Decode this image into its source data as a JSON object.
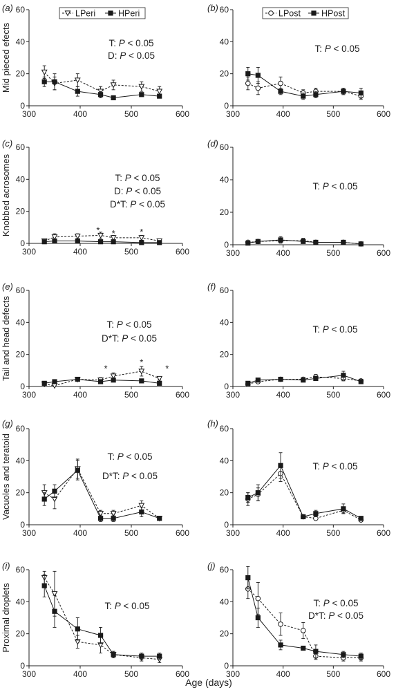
{
  "figure": {
    "xlabel_shared": "Age (days)"
  },
  "legends": {
    "left": {
      "a": "LPeri",
      "b": "HPeri"
    },
    "right": {
      "a": "LPost",
      "b": "HPost"
    }
  },
  "chart_data": [
    {
      "id": "a",
      "type": "line",
      "panel_label": "(a)",
      "ylabel": "Mid pieced efects",
      "xlim": [
        300,
        600
      ],
      "ylim": [
        0,
        60
      ],
      "xticks": [
        300,
        400,
        500,
        600
      ],
      "yticks": [
        0,
        20,
        40,
        60
      ],
      "annotations": [
        "T: P < 0.05",
        "D: P < 0.05"
      ],
      "stars": [],
      "series": [
        {
          "name": "LPeri",
          "style": "dashed",
          "marker": "triangle-open",
          "x": [
            330,
            350,
            395,
            440,
            465,
            520,
            555
          ],
          "y": [
            21,
            14,
            16,
            9,
            13,
            12,
            9
          ],
          "err": [
            4,
            4,
            4,
            3,
            3,
            3,
            3
          ]
        },
        {
          "name": "HPeri",
          "style": "solid",
          "marker": "square-filled",
          "x": [
            330,
            350,
            395,
            440,
            465,
            520,
            555
          ],
          "y": [
            15,
            15,
            9,
            7,
            5,
            7,
            6
          ],
          "err": [
            3,
            5,
            3,
            2,
            1,
            1,
            1
          ]
        }
      ]
    },
    {
      "id": "b",
      "type": "line",
      "panel_label": "(b)",
      "ylabel": "",
      "xlim": [
        300,
        600
      ],
      "ylim": [
        0,
        60
      ],
      "xticks": [
        300,
        400,
        500,
        600
      ],
      "yticks": [
        0,
        20,
        40,
        60
      ],
      "annotations": [
        "T: P < 0.05"
      ],
      "stars": [],
      "series": [
        {
          "name": "LPost",
          "style": "dashed",
          "marker": "circle-open",
          "x": [
            330,
            350,
            395,
            440,
            465,
            520,
            555
          ],
          "y": [
            14,
            11,
            14,
            8,
            9,
            9,
            6
          ],
          "err": [
            4,
            4,
            4,
            2,
            2,
            2,
            2
          ]
        },
        {
          "name": "HPost",
          "style": "solid",
          "marker": "square-filled",
          "x": [
            330,
            350,
            395,
            440,
            465,
            520,
            555
          ],
          "y": [
            20,
            19,
            9,
            6,
            7,
            9,
            8
          ],
          "err": [
            4,
            5,
            2,
            2,
            2,
            2,
            3
          ]
        }
      ]
    },
    {
      "id": "c",
      "type": "line",
      "panel_label": "(c)",
      "ylabel": "Knobbed acrosomes",
      "xlim": [
        300,
        600
      ],
      "ylim": [
        0,
        60
      ],
      "xticks": [
        300,
        400,
        500,
        600
      ],
      "yticks": [
        0,
        20,
        40,
        60
      ],
      "annotations": [
        "T: P < 0.05",
        "D: P < 0.05",
        "D*T: P < 0.05"
      ],
      "stars": [
        {
          "x": 435,
          "y": 8
        },
        {
          "x": 465,
          "y": 6
        },
        {
          "x": 520,
          "y": 7
        }
      ],
      "series": [
        {
          "name": "LPeri",
          "style": "dashed",
          "marker": "triangle-open",
          "x": [
            330,
            350,
            395,
            440,
            465,
            520,
            555
          ],
          "y": [
            1.5,
            4,
            4.5,
            5,
            3.5,
            3.5,
            1.5
          ],
          "err": [
            0.5,
            2,
            1.5,
            2,
            1.5,
            1.5,
            0.5
          ]
        },
        {
          "name": "HPeri",
          "style": "solid",
          "marker": "square-filled",
          "x": [
            330,
            350,
            395,
            440,
            465,
            520,
            555
          ],
          "y": [
            1,
            1.5,
            1.5,
            1,
            1,
            0.5,
            0.5
          ],
          "err": [
            0.5,
            0.5,
            0.5,
            0.5,
            0.5,
            0.3,
            0.3
          ]
        }
      ]
    },
    {
      "id": "d",
      "type": "line",
      "panel_label": "(d)",
      "ylabel": "",
      "xlim": [
        300,
        600
      ],
      "ylim": [
        0,
        60
      ],
      "xticks": [
        300,
        400,
        500,
        600
      ],
      "yticks": [
        0,
        20,
        40,
        60
      ],
      "annotations": [
        "T: P < 0.05"
      ],
      "stars": [],
      "series": [
        {
          "name": "LPost",
          "style": "dashed",
          "marker": "circle-open",
          "x": [
            330,
            350,
            395,
            440,
            465,
            520,
            555
          ],
          "y": [
            1.5,
            2,
            2.5,
            2.5,
            1.5,
            1.5,
            0.5
          ],
          "err": [
            0.5,
            1,
            1.5,
            1.5,
            0.5,
            0.5,
            0.3
          ]
        },
        {
          "name": "HPost",
          "style": "solid",
          "marker": "square-filled",
          "x": [
            330,
            350,
            395,
            440,
            465,
            520,
            555
          ],
          "y": [
            1,
            2,
            3,
            2,
            1.5,
            1.5,
            0.5
          ],
          "err": [
            0.5,
            1,
            2,
            1,
            0.5,
            0.5,
            0.3
          ]
        }
      ]
    },
    {
      "id": "e",
      "type": "line",
      "panel_label": "(e)",
      "ylabel": "Tail and head defects",
      "xlim": [
        300,
        600
      ],
      "ylim": [
        0,
        60
      ],
      "xticks": [
        300,
        400,
        500,
        600
      ],
      "yticks": [
        0,
        20,
        40,
        60
      ],
      "annotations": [
        "T: P < 0.05",
        "D*T: P < 0.05"
      ],
      "stars": [
        {
          "x": 450,
          "y": 11
        },
        {
          "x": 520,
          "y": 15
        },
        {
          "x": 570,
          "y": 11
        }
      ],
      "series": [
        {
          "name": "LPeri",
          "style": "dashed",
          "marker": "triangle-open",
          "x": [
            330,
            350,
            395,
            440,
            465,
            520,
            555
          ],
          "y": [
            1.5,
            0.5,
            4.5,
            4,
            6.5,
            9.5,
            5
          ],
          "err": [
            0.5,
            0.5,
            1,
            1.5,
            2,
            3,
            1
          ]
        },
        {
          "name": "HPeri",
          "style": "solid",
          "marker": "square-filled",
          "x": [
            330,
            350,
            395,
            440,
            465,
            520,
            555
          ],
          "y": [
            2,
            3,
            4.5,
            3,
            4,
            3.5,
            2
          ],
          "err": [
            0.5,
            0.5,
            1,
            1,
            1,
            1,
            0.5
          ]
        }
      ]
    },
    {
      "id": "f",
      "type": "line",
      "panel_label": "(f)",
      "ylabel": "",
      "xlim": [
        300,
        600
      ],
      "ylim": [
        0,
        60
      ],
      "xticks": [
        300,
        400,
        500,
        600
      ],
      "yticks": [
        0,
        20,
        40,
        60
      ],
      "annotations": [
        "T: P < 0.05"
      ],
      "stars": [],
      "series": [
        {
          "name": "LPost",
          "style": "dashed",
          "marker": "circle-open",
          "x": [
            330,
            350,
            395,
            440,
            465,
            520,
            555
          ],
          "y": [
            1.5,
            3,
            4.5,
            4.5,
            6,
            5,
            3.5
          ],
          "err": [
            0.5,
            1,
            1,
            1,
            1.5,
            1.5,
            1
          ]
        },
        {
          "name": "HPost",
          "style": "solid",
          "marker": "square-filled",
          "x": [
            330,
            350,
            395,
            440,
            465,
            520,
            555
          ],
          "y": [
            2,
            4,
            4.5,
            4,
            5,
            7,
            3
          ],
          "err": [
            0.5,
            1,
            1,
            1,
            1,
            2.5,
            1
          ]
        }
      ]
    },
    {
      "id": "g",
      "type": "line",
      "panel_label": "(g)",
      "ylabel": "Vacuoles and teratoid",
      "xlim": [
        300,
        600
      ],
      "ylim": [
        0,
        60
      ],
      "xticks": [
        300,
        400,
        500,
        600
      ],
      "yticks": [
        0,
        20,
        40,
        60
      ],
      "annotations": [
        "T: P < 0.05",
        "D*T: P < 0.05"
      ],
      "stars": [],
      "series": [
        {
          "name": "LPeri",
          "style": "dashed",
          "marker": "triangle-open",
          "x": [
            330,
            350,
            395,
            440,
            465,
            520,
            555
          ],
          "y": [
            20,
            16,
            35,
            7,
            7,
            12,
            4
          ],
          "err": [
            5,
            6,
            6,
            2,
            2,
            3,
            1
          ]
        },
        {
          "name": "HPeri",
          "style": "solid",
          "marker": "square-filled",
          "x": [
            330,
            350,
            395,
            440,
            465,
            520,
            555
          ],
          "y": [
            16,
            21,
            34,
            4,
            4,
            8,
            4
          ],
          "err": [
            4,
            4,
            6,
            2,
            2,
            3,
            1
          ]
        }
      ]
    },
    {
      "id": "h",
      "type": "line",
      "panel_label": "(h)",
      "ylabel": "",
      "xlim": [
        300,
        600
      ],
      "ylim": [
        0,
        60
      ],
      "xticks": [
        300,
        400,
        500,
        600
      ],
      "yticks": [
        0,
        20,
        40,
        60
      ],
      "annotations": [
        "T: P < 0.05"
      ],
      "stars": [],
      "series": [
        {
          "name": "LPost",
          "style": "dashed",
          "marker": "circle-open",
          "x": [
            330,
            350,
            395,
            440,
            465,
            520,
            555
          ],
          "y": [
            16,
            19,
            32,
            5,
            4,
            9,
            3
          ],
          "err": [
            4,
            4,
            5,
            1,
            1,
            2,
            1
          ]
        },
        {
          "name": "HPost",
          "style": "solid",
          "marker": "square-filled",
          "x": [
            330,
            350,
            395,
            440,
            465,
            520,
            555
          ],
          "y": [
            17,
            20,
            37,
            5,
            7,
            10,
            4
          ],
          "err": [
            3,
            5,
            8,
            1,
            2,
            3,
            1
          ]
        }
      ]
    },
    {
      "id": "i",
      "type": "line",
      "panel_label": "(i)",
      "ylabel": "Proximal droplets",
      "xlim": [
        300,
        600
      ],
      "ylim": [
        0,
        60
      ],
      "xticks": [
        300,
        400,
        500,
        600
      ],
      "yticks": [
        0,
        20,
        40,
        60
      ],
      "annotations": [
        "T: P < 0.05"
      ],
      "stars": [],
      "series": [
        {
          "name": "LPeri",
          "style": "dashed",
          "marker": "triangle-open",
          "x": [
            330,
            350,
            395,
            440,
            465,
            520,
            555
          ],
          "y": [
            55,
            45,
            15,
            13,
            7,
            5,
            4
          ],
          "err": [
            4,
            14,
            4,
            5,
            2,
            2,
            2
          ]
        },
        {
          "name": "HPeri",
          "style": "solid",
          "marker": "square-filled",
          "x": [
            330,
            350,
            395,
            440,
            465,
            520,
            555
          ],
          "y": [
            50,
            34,
            23,
            19,
            7,
            6,
            6
          ],
          "err": [
            7,
            10,
            7,
            5,
            2,
            2,
            2
          ]
        }
      ]
    },
    {
      "id": "j",
      "type": "line",
      "panel_label": "(j)",
      "ylabel": "",
      "xlim": [
        300,
        600
      ],
      "ylim": [
        0,
        60
      ],
      "xticks": [
        300,
        400,
        500,
        600
      ],
      "yticks": [
        0,
        20,
        40,
        60
      ],
      "annotations": [
        "T: P < 0.05",
        "D*T: P < 0.05"
      ],
      "stars": [],
      "series": [
        {
          "name": "LPost",
          "style": "dashed",
          "marker": "circle-open",
          "x": [
            330,
            350,
            395,
            440,
            465,
            520,
            555
          ],
          "y": [
            48,
            42,
            26,
            22,
            6,
            5,
            5
          ],
          "err": [
            6,
            10,
            7,
            5,
            2,
            2,
            2
          ]
        },
        {
          "name": "HPost",
          "style": "solid",
          "marker": "square-filled",
          "x": [
            330,
            350,
            395,
            440,
            465,
            520,
            555
          ],
          "y": [
            55,
            30,
            13,
            11,
            9,
            7,
            6
          ],
          "err": [
            7,
            6,
            3,
            1,
            4,
            2,
            2
          ]
        }
      ]
    }
  ]
}
